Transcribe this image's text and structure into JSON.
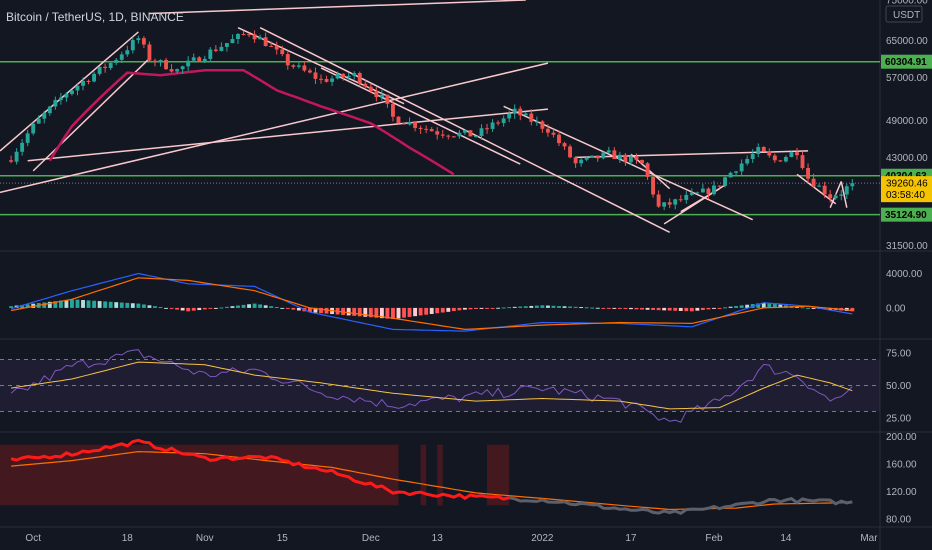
{
  "header": {
    "title": "Bitcoin / TetherUS, 1D, BINANCE"
  },
  "colors": {
    "up": "#26a69a",
    "down": "#ef5350",
    "green_line": "#4caf50",
    "pink_line": "#f8c8cc",
    "ma": "#c2185b",
    "macd": "#2962ff",
    "signal": "#ff6d00",
    "rsi": "#7e57c2",
    "rsi_ma": "#f5c445",
    "price_tag": "#f5c400"
  },
  "price_axis": {
    "currency": "USDT",
    "ticks": [
      "75000.00",
      "65000.00",
      "57000.00",
      "49000.00",
      "43000.00",
      "31500.00"
    ],
    "levels": [
      {
        "label": "60304.91",
        "value": 60304.91
      },
      {
        "label": "40304.63",
        "value": 40304.63
      },
      {
        "label": "35124.90",
        "value": 35124.9
      }
    ],
    "current_price": "39260.46",
    "countdown": "03:58:40"
  },
  "macd_axis": {
    "ticks": [
      "4000.00",
      "0.00"
    ]
  },
  "rsi_axis": {
    "ticks": [
      "75.00",
      "50.00",
      "25.00"
    ]
  },
  "ind_axis": {
    "ticks": [
      "200.00",
      "160.00",
      "120.00",
      "80.00"
    ]
  },
  "x_axis": {
    "labels": [
      "Oct",
      "18",
      "Nov",
      "15",
      "Dec",
      "13",
      "2022",
      "17",
      "Feb",
      "14",
      "Mar"
    ]
  },
  "chart_data": {
    "type": "candlestick",
    "title": "Bitcoin / TetherUS, 1D, BINANCE",
    "price_ylim": [
      31000,
      75000
    ],
    "horizontal_levels": [
      60304.91,
      40304.63,
      35124.9
    ],
    "close_keypoints": [
      {
        "date": "2021-09-27",
        "close": 43000
      },
      {
        "date": "2021-10-01",
        "close": 48000
      },
      {
        "date": "2021-10-07",
        "close": 54000
      },
      {
        "date": "2021-10-15",
        "close": 60000
      },
      {
        "date": "2021-10-20",
        "close": 65500
      },
      {
        "date": "2021-10-22",
        "close": 61000
      },
      {
        "date": "2021-10-27",
        "close": 58500
      },
      {
        "date": "2021-11-02",
        "close": 62500
      },
      {
        "date": "2021-11-09",
        "close": 67000
      },
      {
        "date": "2021-11-12",
        "close": 64500
      },
      {
        "date": "2021-11-16",
        "close": 60000
      },
      {
        "date": "2021-11-22",
        "close": 56500
      },
      {
        "date": "2021-11-28",
        "close": 57500
      },
      {
        "date": "2021-12-03",
        "close": 53000
      },
      {
        "date": "2021-12-05",
        "close": 49500
      },
      {
        "date": "2021-12-13",
        "close": 47000
      },
      {
        "date": "2021-12-20",
        "close": 46500
      },
      {
        "date": "2021-12-27",
        "close": 50500
      },
      {
        "date": "2022-01-02",
        "close": 47500
      },
      {
        "date": "2022-01-07",
        "close": 42000
      },
      {
        "date": "2022-01-13",
        "close": 43500
      },
      {
        "date": "2022-01-19",
        "close": 42000
      },
      {
        "date": "2022-01-22",
        "close": 36000
      },
      {
        "date": "2022-01-28",
        "close": 37500
      },
      {
        "date": "2022-02-01",
        "close": 38500
      },
      {
        "date": "2022-02-05",
        "close": 41500
      },
      {
        "date": "2022-02-09",
        "close": 44000
      },
      {
        "date": "2022-02-12",
        "close": 42500
      },
      {
        "date": "2022-02-16",
        "close": 44000
      },
      {
        "date": "2022-02-18",
        "close": 40000
      },
      {
        "date": "2022-02-22",
        "close": 37500
      },
      {
        "date": "2022-02-24",
        "close": 38000
      },
      {
        "date": "2022-02-26",
        "close": 39260.46
      }
    ],
    "ma_keypoints": [
      {
        "date": "2021-10-04",
        "value": 42500
      },
      {
        "date": "2021-10-08",
        "value": 48000
      },
      {
        "date": "2021-10-14",
        "value": 54000
      },
      {
        "date": "2021-10-18",
        "value": 58000
      },
      {
        "date": "2021-10-24",
        "value": 57500
      },
      {
        "date": "2021-11-01",
        "value": 58500
      },
      {
        "date": "2021-11-08",
        "value": 58500
      },
      {
        "date": "2021-11-14",
        "value": 54500
      },
      {
        "date": "2021-11-22",
        "value": 51500
      },
      {
        "date": "2021-12-01",
        "value": 48500
      },
      {
        "date": "2021-12-08",
        "value": 44500
      },
      {
        "date": "2021-12-16",
        "value": 40500
      }
    ],
    "macd_ylim": [
      -3500,
      6500
    ],
    "macd_keypoints": [
      {
        "date": "2021-09-27",
        "macd": -100,
        "signal": -300
      },
      {
        "date": "2021-10-08",
        "macd": 2000,
        "signal": 1000
      },
      {
        "date": "2021-10-20",
        "macd": 4000,
        "signal": 3500
      },
      {
        "date": "2021-10-29",
        "macd": 2800,
        "signal": 3200
      },
      {
        "date": "2021-11-10",
        "macd": 2500,
        "signal": 2000
      },
      {
        "date": "2021-11-20",
        "macd": -500,
        "signal": 0
      },
      {
        "date": "2021-12-05",
        "macd": -2500,
        "signal": -1200
      },
      {
        "date": "2021-12-18",
        "macd": -2700,
        "signal": -2500
      },
      {
        "date": "2022-01-01",
        "macd": -1700,
        "signal": -2000
      },
      {
        "date": "2022-01-15",
        "macd": -1800,
        "signal": -1700
      },
      {
        "date": "2022-01-28",
        "macd": -2200,
        "signal": -1800
      },
      {
        "date": "2022-02-10",
        "macd": 600,
        "signal": 0
      },
      {
        "date": "2022-02-18",
        "macd": 200,
        "signal": 200
      },
      {
        "date": "2022-02-26",
        "macd": -700,
        "signal": -300
      }
    ],
    "rsi_ylim": [
      15,
      85
    ],
    "rsi_band": [
      30,
      70
    ],
    "rsi_keypoints": [
      {
        "date": "2021-09-27",
        "rsi": 42,
        "ma": 48
      },
      {
        "date": "2021-10-08",
        "rsi": 65,
        "ma": 55
      },
      {
        "date": "2021-10-20",
        "rsi": 75,
        "ma": 68
      },
      {
        "date": "2021-11-01",
        "rsi": 58,
        "ma": 66
      },
      {
        "date": "2021-11-10",
        "rsi": 62,
        "ma": 58
      },
      {
        "date": "2021-11-22",
        "rsi": 45,
        "ma": 52
      },
      {
        "date": "2021-12-05",
        "rsi": 35,
        "ma": 44
      },
      {
        "date": "2021-12-20",
        "rsi": 42,
        "ma": 38
      },
      {
        "date": "2022-01-01",
        "rsi": 48,
        "ma": 40
      },
      {
        "date": "2022-01-15",
        "rsi": 38,
        "ma": 38
      },
      {
        "date": "2022-01-24",
        "rsi": 22,
        "ma": 32
      },
      {
        "date": "2022-02-02",
        "rsi": 38,
        "ma": 33
      },
      {
        "date": "2022-02-10",
        "rsi": 64,
        "ma": 48
      },
      {
        "date": "2022-02-16",
        "rsi": 58,
        "ma": 58
      },
      {
        "date": "2022-02-22",
        "rsi": 38,
        "ma": 52
      },
      {
        "date": "2022-02-26",
        "rsi": 46,
        "ma": 46
      }
    ],
    "ind_ylim": [
      70,
      205
    ],
    "ind_keypoints": [
      {
        "date": "2021-09-27",
        "value": 165,
        "ma": 157
      },
      {
        "date": "2021-10-08",
        "value": 175,
        "ma": 165
      },
      {
        "date": "2021-10-20",
        "value": 192,
        "ma": 178
      },
      {
        "date": "2021-11-01",
        "value": 168,
        "ma": 175
      },
      {
        "date": "2021-11-12",
        "value": 170,
        "ma": 165
      },
      {
        "date": "2021-11-24",
        "value": 148,
        "ma": 155
      },
      {
        "date": "2021-12-05",
        "value": 120,
        "ma": 138
      },
      {
        "date": "2021-12-20",
        "value": 112,
        "ma": 118
      },
      {
        "date": "2022-01-01",
        "value": 108,
        "ma": 110
      },
      {
        "date": "2022-01-15",
        "value": 95,
        "ma": 100
      },
      {
        "date": "2022-01-24",
        "value": 88,
        "ma": 94
      },
      {
        "date": "2022-02-05",
        "value": 100,
        "ma": 96
      },
      {
        "date": "2022-02-12",
        "value": 108,
        "ma": 102
      },
      {
        "date": "2022-02-26",
        "value": 104,
        "ma": 104
      }
    ],
    "x_ticks": [
      {
        "label": "Oct",
        "date": "2021-10-01"
      },
      {
        "label": "18",
        "date": "2021-10-18"
      },
      {
        "label": "Nov",
        "date": "2021-11-01"
      },
      {
        "label": "15",
        "date": "2021-11-15"
      },
      {
        "label": "Dec",
        "date": "2021-12-01"
      },
      {
        "label": "13",
        "date": "2021-12-13"
      },
      {
        "label": "2022",
        "date": "2022-01-01"
      },
      {
        "label": "17",
        "date": "2022-01-17"
      },
      {
        "label": "Feb",
        "date": "2022-02-01"
      },
      {
        "label": "14",
        "date": "2022-02-14"
      },
      {
        "label": "Mar",
        "date": "2022-03-01"
      }
    ],
    "trendlines": [
      {
        "from": {
          "date": "2021-09-25",
          "price": 44000
        },
        "to": {
          "date": "2021-10-20",
          "price": 67000
        }
      },
      {
        "from": {
          "date": "2021-10-01",
          "price": 41000
        },
        "to": {
          "date": "2021-10-22",
          "price": 61000
        }
      },
      {
        "from": {
          "date": "2021-11-07",
          "price": 68000
        },
        "to": {
          "date": "2021-12-07",
          "price": 52000
        }
      },
      {
        "from": {
          "date": "2021-11-22",
          "price": 59000
        },
        "to": {
          "date": "2021-12-28",
          "price": 42000
        }
      },
      {
        "from": {
          "date": "2021-11-11",
          "price": 68000
        },
        "to": {
          "date": "2022-01-24",
          "price": 33000
        }
      },
      {
        "from": {
          "date": "2021-12-25",
          "price": 51500
        },
        "to": {
          "date": "2022-02-08",
          "price": 34500
        }
      },
      {
        "from": {
          "date": "2021-09-25",
          "price": 38000
        },
        "to": {
          "date": "2022-01-02",
          "price": 60000
        }
      },
      {
        "from": {
          "date": "2021-09-30",
          "price": 42500
        },
        "to": {
          "date": "2022-01-02",
          "price": 51000
        }
      },
      {
        "from": {
          "date": "2021-10-22",
          "price": 71500
        },
        "to": {
          "date": "2021-12-29",
          "price": 75000
        }
      },
      {
        "from": {
          "date": "2022-01-07",
          "price": 43000
        },
        "to": {
          "date": "2022-02-18",
          "price": 44000
        }
      },
      {
        "from": {
          "date": "2022-01-17",
          "price": 43500
        },
        "to": {
          "date": "2022-01-24",
          "price": 38500
        }
      },
      {
        "from": {
          "date": "2022-01-23",
          "price": 34000
        },
        "to": {
          "date": "2022-02-03",
          "price": 39000
        }
      },
      {
        "from": {
          "date": "2022-01-26",
          "price": 35500
        },
        "to": {
          "date": "2022-02-02",
          "price": 38500
        }
      },
      {
        "from": {
          "date": "2022-02-16",
          "price": 40500
        },
        "to": {
          "date": "2022-02-23",
          "price": 36500
        }
      },
      {
        "from": {
          "date": "2022-02-22",
          "price": 36000
        },
        "to": {
          "date": "2022-02-24",
          "price": 39500
        }
      },
      {
        "from": {
          "date": "2022-02-24",
          "price": 39500
        },
        "to": {
          "date": "2022-02-25",
          "price": 36000
        }
      }
    ],
    "ind_shaded_ranges": [
      {
        "from": "2021-09-25",
        "to": "2021-12-06"
      },
      {
        "from": "2021-12-10",
        "to": "2021-12-11"
      },
      {
        "from": "2021-12-13",
        "to": "2021-12-14"
      },
      {
        "from": "2021-12-22",
        "to": "2021-12-26"
      }
    ]
  }
}
